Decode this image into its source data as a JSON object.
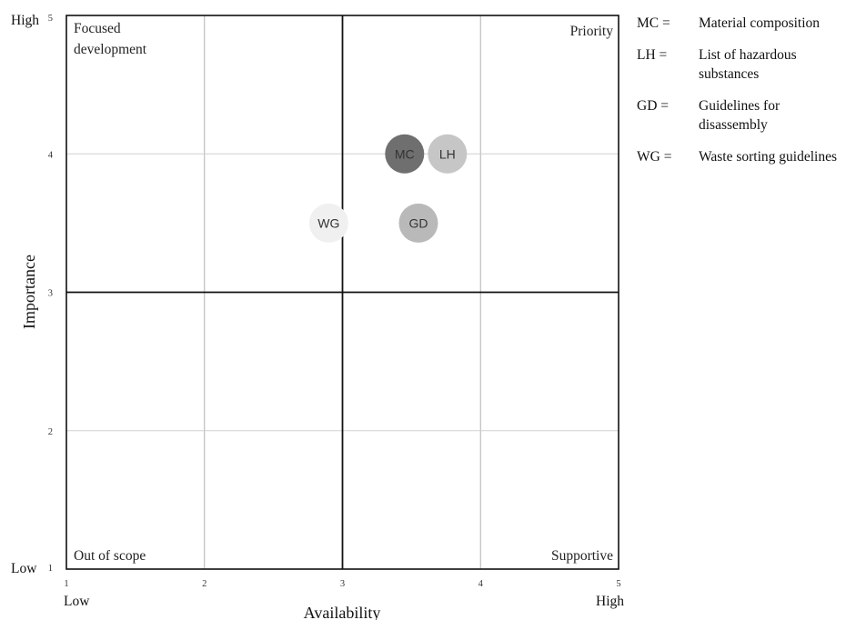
{
  "chart_data": {
    "type": "scatter",
    "xlabel": "Availability",
    "ylabel": "Importance",
    "xlim": [
      1,
      5
    ],
    "ylim": [
      1,
      5
    ],
    "x_ticks": [
      "1",
      "2",
      "3",
      "4",
      "5"
    ],
    "y_ticks": [
      "1",
      "2",
      "3",
      "4",
      "5"
    ],
    "x_end_labels": {
      "low": "Low",
      "high": "High"
    },
    "y_end_labels": {
      "low": "Low",
      "high": "High"
    },
    "quadrant_dividers": {
      "x": 3,
      "y": 3
    },
    "grid": true,
    "quadrant_labels": {
      "top_left": "Focused development",
      "top_right": "Priority",
      "bottom_left": "Out of scope",
      "bottom_right": "Supportive"
    },
    "points": [
      {
        "label": "MC",
        "x": 3.45,
        "y": 4.0,
        "color": "#6f6f6f"
      },
      {
        "label": "LH",
        "x": 3.76,
        "y": 4.0,
        "color": "#c6c6c6"
      },
      {
        "label": "WG",
        "x": 2.9,
        "y": 3.5,
        "color": "#f0f0f0"
      },
      {
        "label": "GD",
        "x": 3.55,
        "y": 3.5,
        "color": "#b9b9b9"
      }
    ]
  },
  "legend": [
    {
      "key": "MC =",
      "desc": "Material composition"
    },
    {
      "key": "LH =",
      "desc": "List of hazardous substances"
    },
    {
      "key": "GD =",
      "desc": "Guidelines for disassembly"
    },
    {
      "key": "WG =",
      "desc": "Waste sorting guidelines"
    }
  ]
}
